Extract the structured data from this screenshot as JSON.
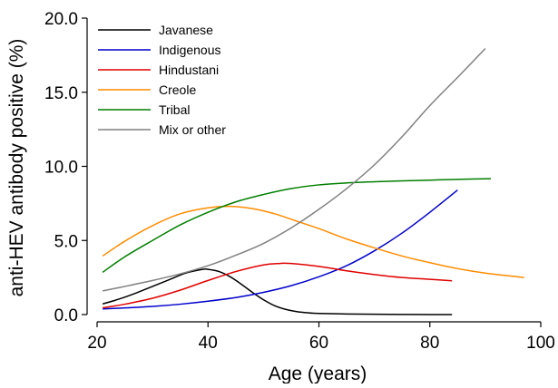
{
  "chart_data": {
    "type": "line",
    "title": "",
    "xlabel": "Age (years)",
    "ylabel": "anti-HEV antibody positive (%)",
    "xlim": [
      20,
      100
    ],
    "ylim": [
      0,
      20
    ],
    "xticks": [
      20,
      40,
      60,
      80,
      100
    ],
    "yticks": [
      0,
      5,
      10,
      15,
      20
    ],
    "xtick_labels": [
      "20",
      "40",
      "60",
      "80",
      "100"
    ],
    "ytick_labels": [
      "0.0",
      "5.0",
      "10.0",
      "15.0",
      "20.0"
    ],
    "grid": false,
    "legend_position": "top-left",
    "series": [
      {
        "name": "Javanese",
        "color": "#000000",
        "points": [
          [
            21,
            0.72
          ],
          [
            24,
            1.05
          ],
          [
            27,
            1.45
          ],
          [
            30,
            1.9
          ],
          [
            33,
            2.35
          ],
          [
            36,
            2.8
          ],
          [
            39,
            3.05
          ],
          [
            40,
            3.05
          ],
          [
            42,
            2.9
          ],
          [
            44,
            2.55
          ],
          [
            46,
            2.05
          ],
          [
            48,
            1.5
          ],
          [
            50,
            1.0
          ],
          [
            52,
            0.6
          ],
          [
            54,
            0.35
          ],
          [
            56,
            0.2
          ],
          [
            58,
            0.12
          ],
          [
            60,
            0.08
          ],
          [
            65,
            0.04
          ],
          [
            70,
            0.02
          ],
          [
            75,
            0.01
          ],
          [
            80,
            0.0
          ],
          [
            84,
            0.0
          ]
        ]
      },
      {
        "name": "Indigenous",
        "color": "#0000cc",
        "points": [
          [
            21,
            0.38
          ],
          [
            25,
            0.45
          ],
          [
            30,
            0.55
          ],
          [
            35,
            0.7
          ],
          [
            40,
            0.9
          ],
          [
            45,
            1.15
          ],
          [
            50,
            1.5
          ],
          [
            55,
            1.95
          ],
          [
            60,
            2.55
          ],
          [
            65,
            3.3
          ],
          [
            70,
            4.3
          ],
          [
            75,
            5.5
          ],
          [
            80,
            6.9
          ],
          [
            85,
            8.4
          ]
        ]
      },
      {
        "name": "Hindustani",
        "color": "#e00000",
        "points": [
          [
            21,
            0.45
          ],
          [
            25,
            0.7
          ],
          [
            30,
            1.1
          ],
          [
            35,
            1.65
          ],
          [
            40,
            2.3
          ],
          [
            45,
            2.9
          ],
          [
            50,
            3.35
          ],
          [
            53,
            3.45
          ],
          [
            55,
            3.45
          ],
          [
            60,
            3.25
          ],
          [
            65,
            2.95
          ],
          [
            70,
            2.7
          ],
          [
            75,
            2.5
          ],
          [
            80,
            2.38
          ],
          [
            84,
            2.28
          ]
        ]
      },
      {
        "name": "Creole",
        "color": "#ff8c00",
        "points": [
          [
            21,
            3.95
          ],
          [
            25,
            4.95
          ],
          [
            30,
            6.0
          ],
          [
            35,
            6.8
          ],
          [
            40,
            7.2
          ],
          [
            44,
            7.3
          ],
          [
            48,
            7.15
          ],
          [
            52,
            6.8
          ],
          [
            56,
            6.3
          ],
          [
            60,
            5.8
          ],
          [
            65,
            5.1
          ],
          [
            70,
            4.5
          ],
          [
            75,
            3.95
          ],
          [
            80,
            3.5
          ],
          [
            85,
            3.1
          ],
          [
            90,
            2.8
          ],
          [
            97,
            2.5
          ]
        ]
      },
      {
        "name": "Tribal",
        "color": "#007f00",
        "points": [
          [
            21,
            2.85
          ],
          [
            25,
            3.9
          ],
          [
            30,
            5.0
          ],
          [
            35,
            6.05
          ],
          [
            40,
            6.9
          ],
          [
            45,
            7.6
          ],
          [
            50,
            8.1
          ],
          [
            55,
            8.5
          ],
          [
            60,
            8.75
          ],
          [
            65,
            8.88
          ],
          [
            70,
            8.96
          ],
          [
            75,
            9.02
          ],
          [
            80,
            9.07
          ],
          [
            85,
            9.12
          ],
          [
            91,
            9.17
          ]
        ]
      },
      {
        "name": "Mix or other",
        "color": "#808080",
        "points": [
          [
            21,
            1.6
          ],
          [
            25,
            1.9
          ],
          [
            30,
            2.3
          ],
          [
            35,
            2.75
          ],
          [
            40,
            3.3
          ],
          [
            45,
            4.0
          ],
          [
            50,
            4.8
          ],
          [
            55,
            5.85
          ],
          [
            60,
            7.1
          ],
          [
            65,
            8.5
          ],
          [
            70,
            10.1
          ],
          [
            75,
            12.0
          ],
          [
            80,
            14.1
          ],
          [
            85,
            16.0
          ],
          [
            90,
            17.95
          ]
        ]
      }
    ]
  }
}
